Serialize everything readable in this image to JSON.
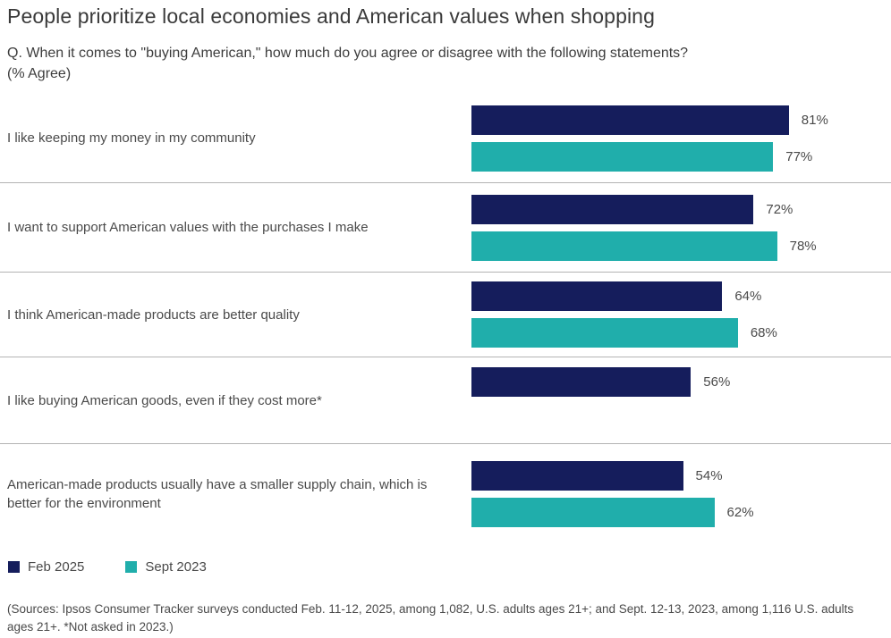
{
  "title": "People prioritize local economies and American values when shopping",
  "question_line1": "Q. When it comes to \"buying American,\" how much do you agree or disagree with the following statements?",
  "question_line2": "(% Agree)",
  "colors": {
    "navy": "#151d5c",
    "teal": "#20aeab",
    "divider": "#b3b3b3",
    "title_text": "#3a3a3a",
    "body_text": "#4a4a4a"
  },
  "legend": [
    {
      "label": "Feb 2025",
      "color": "#151d5c"
    },
    {
      "label": "Sept 2023",
      "color": "#20aeab"
    }
  ],
  "source_note": "(Sources: Ipsos Consumer Tracker surveys conducted Feb. 11-12, 2025, among 1,082, U.S. adults ages 21+; and Sept. 12-13, 2023, among 1,116 U.S. adults ages 21+. *Not asked in 2023.)",
  "chart_data": {
    "type": "bar",
    "orientation": "horizontal",
    "title": "People prioritize local economies and American values when shopping",
    "subtitle": "Q. When it comes to \"buying American,\" how much do you agree or disagree with the following statements? (% Agree)",
    "ylabel": "",
    "xlabel": "% Agree",
    "xlim": [
      0,
      100
    ],
    "grid": false,
    "legend_position": "bottom",
    "value_labels": true,
    "value_suffix": "%",
    "categories": [
      "I like keeping my money in my community",
      "I want to support American values with the purchases I make",
      "I think American-made products are better quality",
      "I like buying American goods, even if they cost more*",
      "American-made products usually have a smaller supply chain, which is better for the environment"
    ],
    "series": [
      {
        "name": "Feb 2025",
        "color": "#151d5c",
        "values": [
          81,
          72,
          64,
          56,
          54
        ]
      },
      {
        "name": "Sept 2023",
        "color": "#20aeab",
        "values": [
          77,
          78,
          68,
          null,
          62
        ]
      }
    ],
    "footnote": "*Not asked in 2023"
  }
}
